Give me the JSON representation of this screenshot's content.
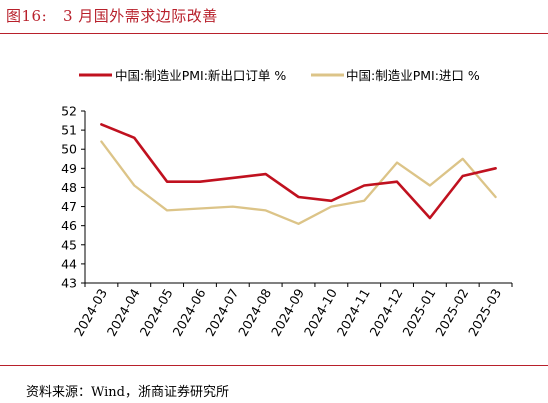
{
  "figure": {
    "title": "图16:   3 月国外需求边际改善",
    "source": "资料来源：Wind，浙商证券研究所"
  },
  "colors": {
    "title_accent": "#b8202b",
    "series_new_orders": "#c0111f",
    "series_imports": "#dcc488",
    "axis": "#000000"
  },
  "chart_data": {
    "type": "line",
    "title": "",
    "xlabel": "",
    "ylabel": "",
    "ylim": [
      43,
      52
    ],
    "yticks": [
      43,
      44,
      45,
      46,
      47,
      48,
      49,
      50,
      51,
      52
    ],
    "grid": false,
    "legend_position": "top",
    "categories": [
      "2024-03",
      "2024-04",
      "2024-05",
      "2024-06",
      "2024-07",
      "2024-08",
      "2024-09",
      "2024-10",
      "2024-11",
      "2024-12",
      "2025-01",
      "2025-02",
      "2025-03"
    ],
    "series": [
      {
        "name": "中国:制造业PMI:新出口订单 %",
        "color": "#c0111f",
        "values": [
          51.3,
          50.6,
          48.3,
          48.3,
          48.5,
          48.7,
          47.5,
          47.3,
          48.1,
          48.3,
          46.4,
          48.6,
          49.0
        ]
      },
      {
        "name": "中国:制造业PMI:进口 %",
        "color": "#dcc488",
        "values": [
          50.4,
          48.1,
          46.8,
          46.9,
          47.0,
          46.8,
          46.1,
          47.0,
          47.3,
          49.3,
          48.1,
          49.5,
          47.5
        ]
      }
    ]
  }
}
